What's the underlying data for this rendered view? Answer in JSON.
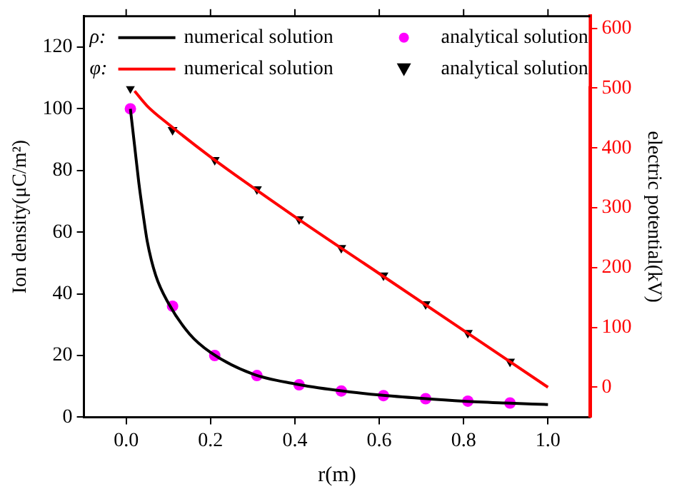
{
  "chart_data": {
    "type": "line",
    "xlabel": "r(m)",
    "ylabel": "Ion density(μC/m²)",
    "y2label": "electric potential(kV)",
    "xlim": [
      -0.1,
      1.1
    ],
    "xticks": [
      {
        "value": 0,
        "label": "0.0"
      },
      0.2,
      0.4,
      0.6,
      0.8,
      {
        "value": 1,
        "label": "1.0"
      }
    ],
    "ylim": [
      0,
      130
    ],
    "yticks": [
      0,
      20,
      40,
      60,
      80,
      100,
      120
    ],
    "y2lim": [
      -50,
      620
    ],
    "y2ticks": [
      0,
      100,
      200,
      300,
      400,
      500,
      600
    ],
    "legend": "top",
    "grid": false,
    "annotations": [
      "ρ:",
      "φ:"
    ],
    "series": [
      {
        "name": "numerical solution",
        "marker": "none",
        "color": "#000000",
        "x": [
          0.01,
          0.02,
          0.03,
          0.04,
          0.05,
          0.07,
          0.1,
          0.15,
          0.2,
          0.3,
          0.4,
          0.5,
          0.6,
          0.7,
          0.8,
          0.9,
          1.0
        ],
        "values": [
          100,
          88,
          76,
          66,
          57,
          46,
          37,
          27,
          21,
          14,
          10.8,
          8.7,
          7.2,
          6.1,
          5.2,
          4.6,
          4.1
        ]
      },
      {
        "name": "analytical solution",
        "type": "scatter",
        "marker": "circle",
        "color": "#ff00ff",
        "x": [
          0.01,
          0.11,
          0.21,
          0.31,
          0.41,
          0.51,
          0.61,
          0.71,
          0.81,
          0.91
        ],
        "values": [
          100,
          36,
          20,
          13.5,
          10.5,
          8.5,
          7,
          6,
          5.2,
          4.6
        ]
      },
      {
        "name": "numerical solution",
        "marker": "none",
        "axis": "y2",
        "color": "#ff0000",
        "x": [
          0.02,
          0.05,
          0.1,
          0.2,
          0.4,
          0.6,
          0.8,
          1.0
        ],
        "values": [
          495,
          470,
          440,
          385,
          285,
          190,
          95,
          0
        ]
      },
      {
        "name": "analytical solution",
        "type": "scatter",
        "marker": "triangle",
        "axis": "y2",
        "color": "#000000",
        "x": [
          0.01,
          0.11,
          0.21,
          0.31,
          0.41,
          0.51,
          0.61,
          0.71,
          0.81,
          0.91
        ],
        "values": [
          500,
          430,
          380,
          331,
          281,
          233,
          187,
          139,
          91,
          43
        ]
      }
    ]
  }
}
